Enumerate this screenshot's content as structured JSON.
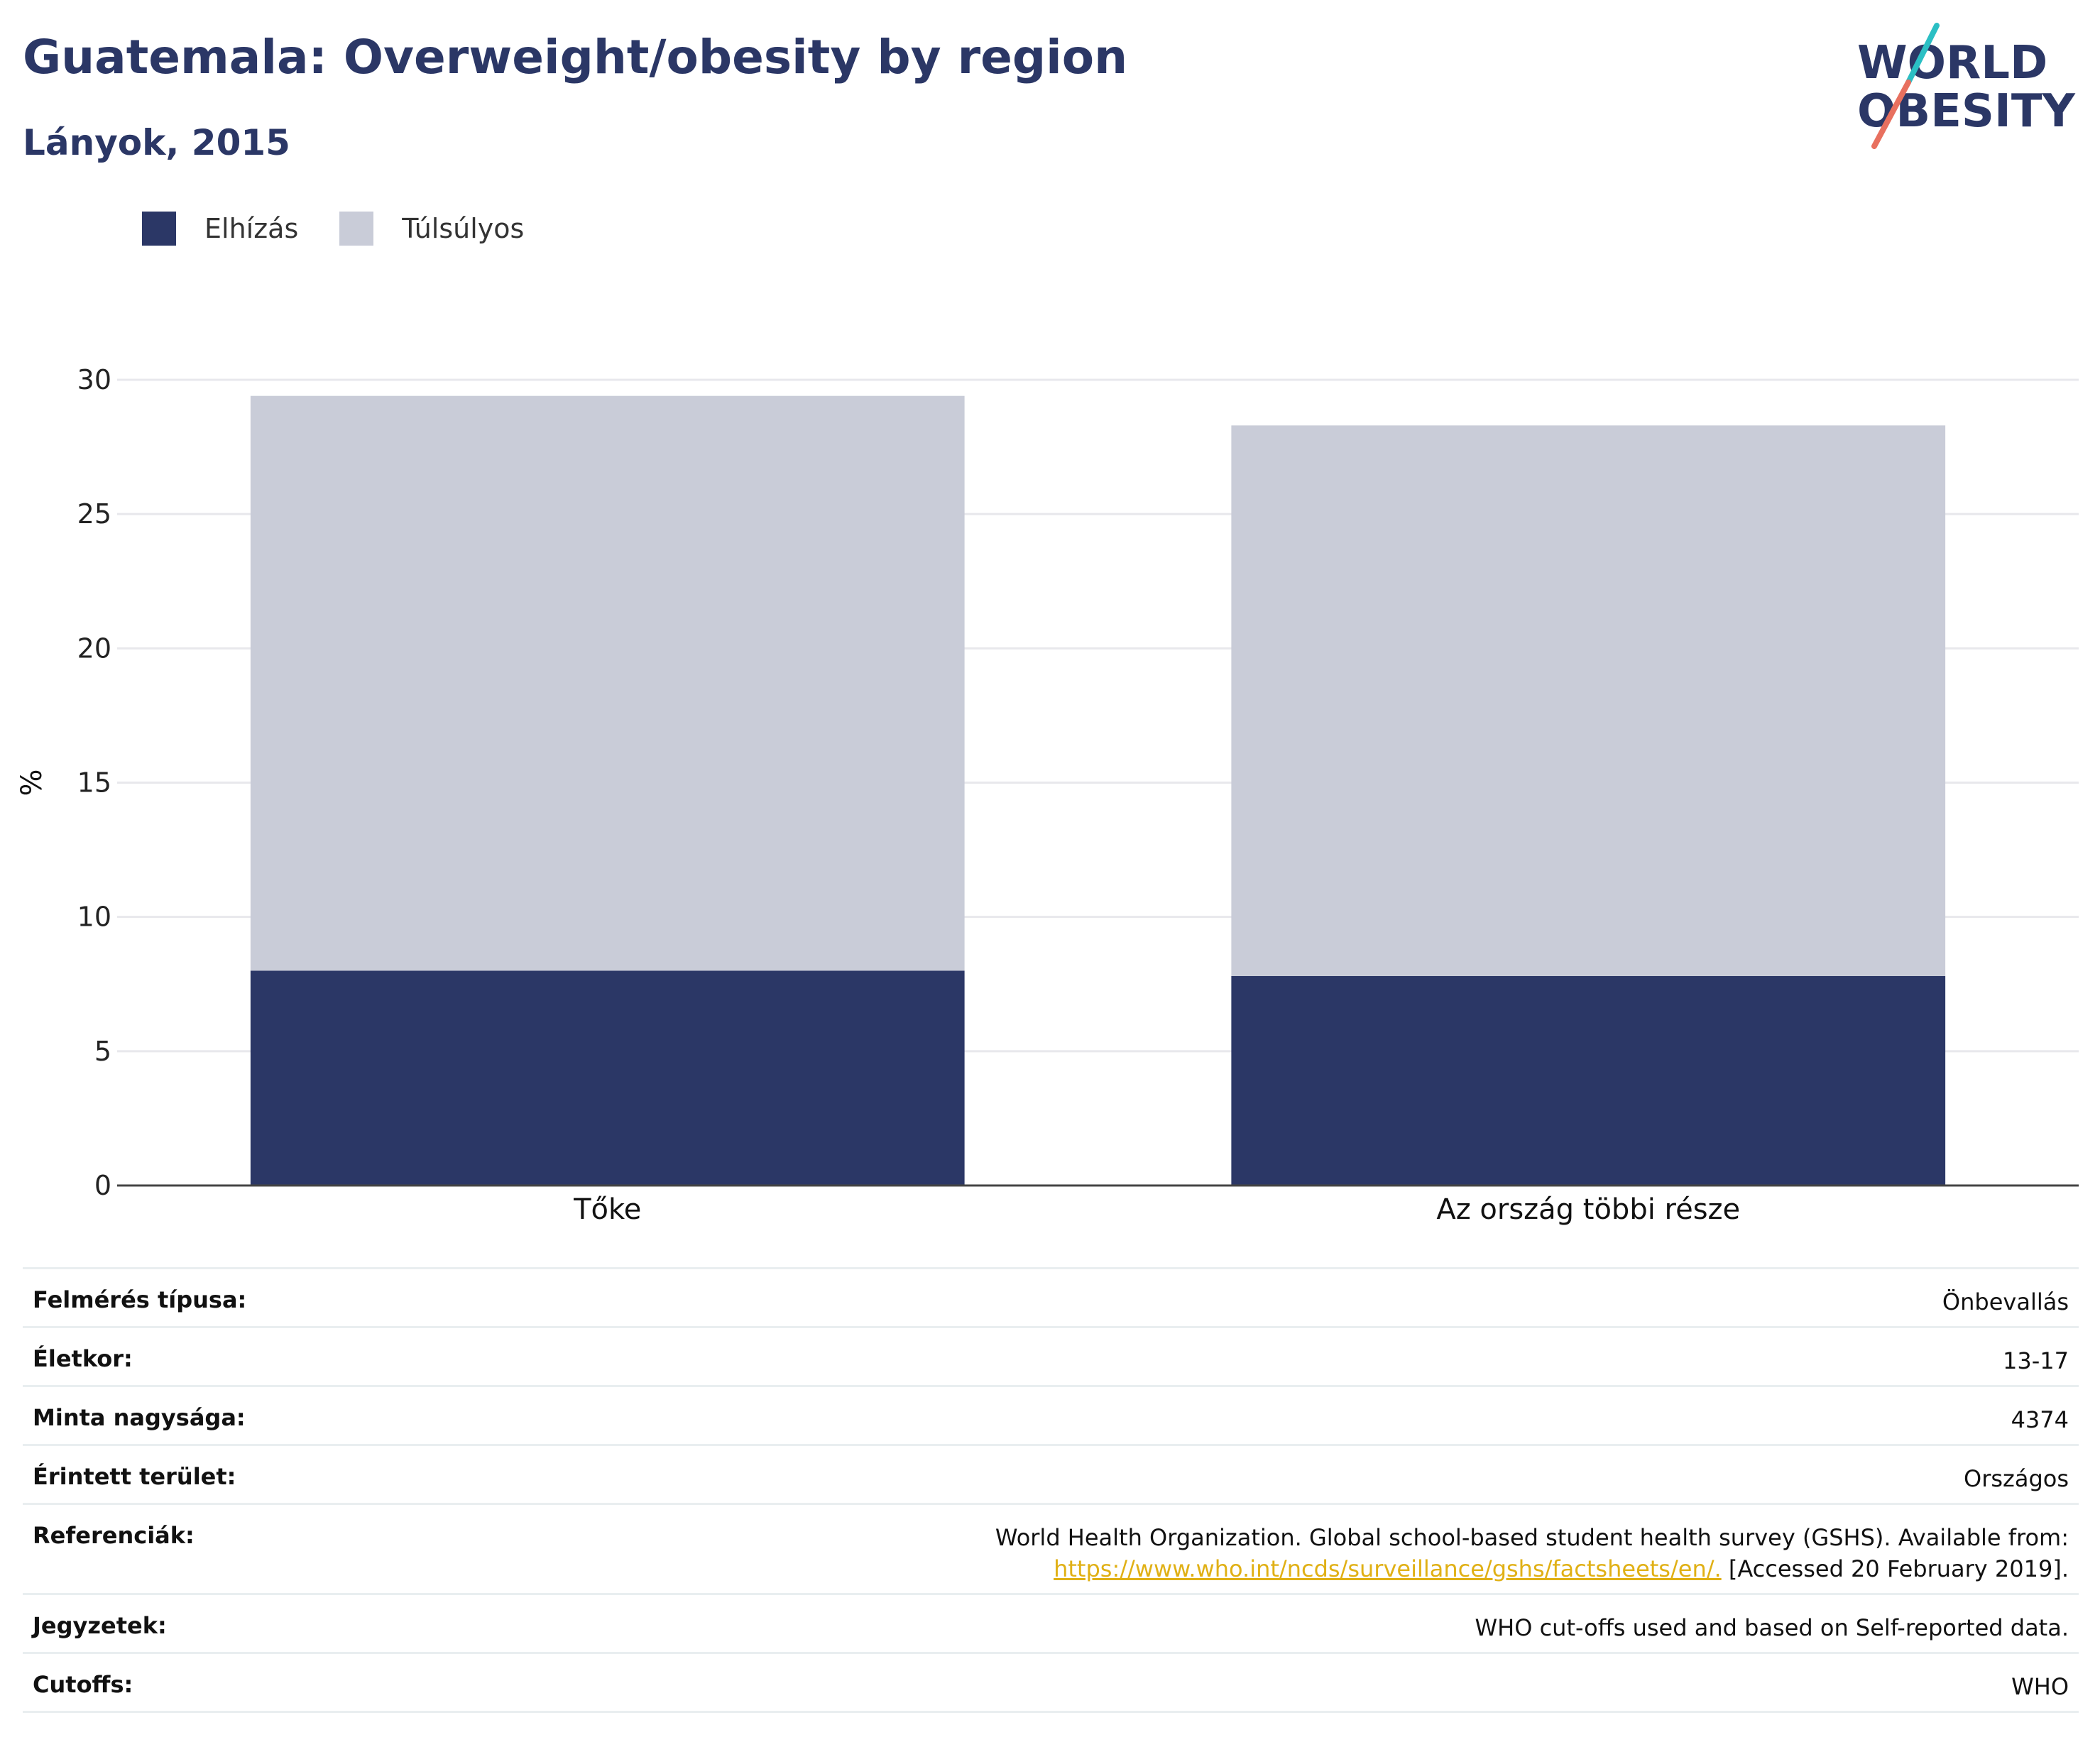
{
  "title": "Guatemala: Overweight/obesity by region",
  "subtitle": "Lányok, 2015",
  "logo": {
    "line1": "WORLD",
    "line2": "OBESITY"
  },
  "colors": {
    "brand": "#2b3766",
    "obesity": "#2b3766",
    "overweight": "#c9ccd8",
    "accent_teal": "#2bbfc4",
    "accent_red": "#e8705f",
    "link": "#e0b015"
  },
  "legend": [
    {
      "label": "Elhízás",
      "color": "#2b3766"
    },
    {
      "label": "Túlsúlyos",
      "color": "#c9ccd8"
    }
  ],
  "chart_data": {
    "type": "bar",
    "stacked": true,
    "categories": [
      "Tőke",
      "Az ország többi része"
    ],
    "series": [
      {
        "name": "Elhízás",
        "values": [
          8.0,
          7.8
        ]
      },
      {
        "name": "Túlsúlyos",
        "values": [
          21.4,
          20.5
        ]
      }
    ],
    "ylabel": "%",
    "ylim": [
      0,
      30
    ],
    "yticks": [
      0,
      5,
      10,
      15,
      20,
      25,
      30
    ],
    "grid": true,
    "legend_position": "top-left"
  },
  "table": {
    "survey_type": {
      "label": "Felmérés típusa:",
      "value": "Önbevallás"
    },
    "age": {
      "label": "Életkor:",
      "value": "13-17"
    },
    "sample_size": {
      "label": "Minta nagysága:",
      "value": "4374"
    },
    "area": {
      "label": "Érintett terület:",
      "value": "Országos"
    },
    "references": {
      "label": "Referenciák:",
      "text": "World Health Organization. Global school-based student health survey (GSHS). Available from:",
      "link": "https://www.who.int/ncds/surveillance/gshs/factsheets/en/.",
      "suffix": " [Accessed 20 February 2019]."
    },
    "notes": {
      "label": "Jegyzetek:",
      "value": "WHO cut-offs used and based on Self-reported data."
    },
    "cutoffs": {
      "label": "Cutoffs:",
      "value": "WHO"
    }
  }
}
